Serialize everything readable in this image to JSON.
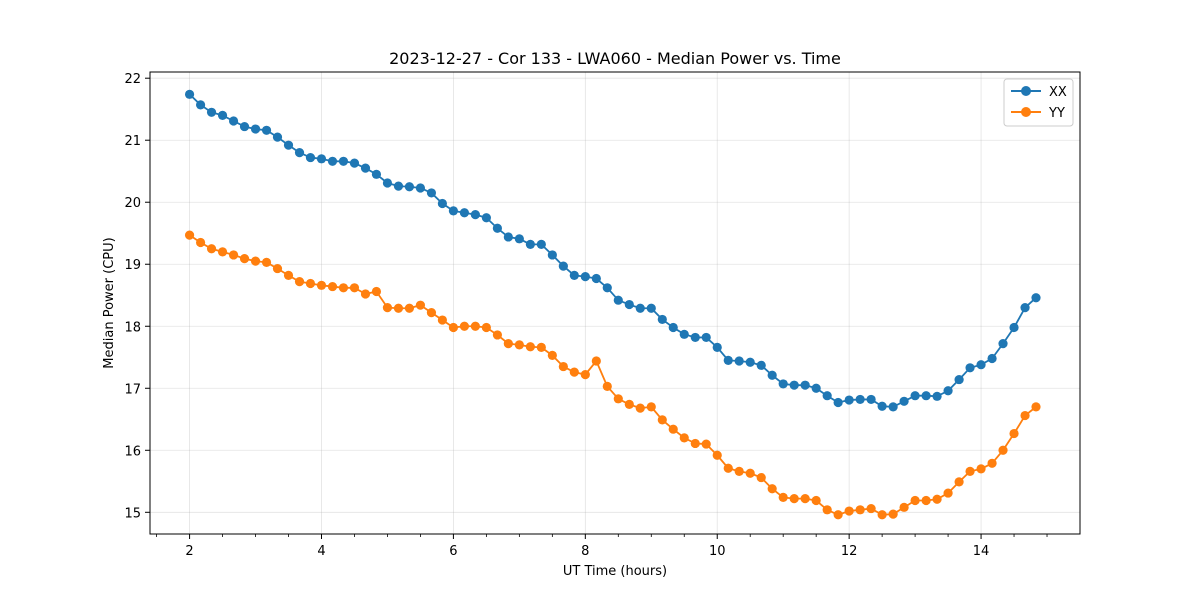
{
  "chart_data": {
    "type": "line",
    "title": "2023-12-27 - Cor 133 - LWA060 - Median Power vs. Time",
    "xlabel": "UT Time (hours)",
    "ylabel": "Median Power (CPU)",
    "xlim": [
      1.4,
      15.5
    ],
    "ylim": [
      14.65,
      22.1
    ],
    "x_ticks": [
      2,
      4,
      6,
      8,
      10,
      12,
      14
    ],
    "y_ticks": [
      15,
      16,
      17,
      18,
      19,
      20,
      21,
      22
    ],
    "x_minor_ticks": [
      1.5,
      2.5,
      3,
      3.5,
      4.5,
      5,
      5.5,
      6.5,
      7,
      7.5,
      8.5,
      9,
      9.5,
      10.5,
      11,
      11.5,
      12.5,
      13,
      13.5,
      14.5,
      15
    ],
    "grid": true,
    "legend_position": "top-right",
    "x": [
      2.0,
      2.167,
      2.333,
      2.5,
      2.667,
      2.833,
      3.0,
      3.167,
      3.333,
      3.5,
      3.667,
      3.833,
      4.0,
      4.167,
      4.333,
      4.5,
      4.667,
      4.833,
      5.0,
      5.167,
      5.333,
      5.5,
      5.667,
      5.833,
      6.0,
      6.167,
      6.333,
      6.5,
      6.667,
      6.833,
      7.0,
      7.167,
      7.333,
      7.5,
      7.667,
      7.833,
      8.0,
      8.167,
      8.333,
      8.5,
      8.667,
      8.833,
      9.0,
      9.167,
      9.333,
      9.5,
      9.667,
      9.833,
      10.0,
      10.167,
      10.333,
      10.5,
      10.667,
      10.833,
      11.0,
      11.167,
      11.333,
      11.5,
      11.667,
      11.833,
      12.0,
      12.167,
      12.333,
      12.5,
      12.667,
      12.833,
      13.0,
      13.167,
      13.333,
      13.5,
      13.667,
      13.833,
      14.0,
      14.167,
      14.333,
      14.5,
      14.667,
      14.833
    ],
    "series": [
      {
        "name": "XX",
        "color": "#1f77b4",
        "values": [
          21.74,
          21.57,
          21.45,
          21.4,
          21.31,
          21.22,
          21.18,
          21.16,
          21.05,
          20.92,
          20.8,
          20.72,
          20.7,
          20.66,
          20.66,
          20.63,
          20.55,
          20.45,
          20.31,
          20.26,
          20.25,
          20.23,
          20.15,
          19.98,
          19.86,
          19.83,
          19.8,
          19.75,
          19.58,
          19.44,
          19.41,
          19.32,
          19.32,
          19.15,
          18.97,
          18.82,
          18.8,
          18.77,
          18.62,
          18.42,
          18.35,
          18.29,
          18.29,
          18.11,
          17.98,
          17.87,
          17.82,
          17.82,
          17.66,
          17.45,
          17.44,
          17.42,
          17.37,
          17.21,
          17.07,
          17.05,
          17.05,
          17.0,
          16.88,
          16.77,
          16.81,
          16.82,
          16.82,
          16.71,
          16.7,
          16.79,
          16.88,
          16.88,
          16.87,
          16.96,
          17.14,
          17.33,
          17.38,
          17.48,
          17.72,
          17.98,
          18.3,
          18.46
        ]
      },
      {
        "name": "YY",
        "color": "#ff7f0e",
        "values": [
          19.47,
          19.35,
          19.25,
          19.2,
          19.15,
          19.09,
          19.05,
          19.03,
          18.93,
          18.82,
          18.72,
          18.69,
          18.66,
          18.64,
          18.62,
          18.62,
          18.52,
          18.56,
          18.3,
          18.29,
          18.29,
          18.34,
          18.22,
          18.1,
          17.98,
          18.0,
          18.0,
          17.98,
          17.86,
          17.72,
          17.7,
          17.67,
          17.66,
          17.53,
          17.35,
          17.26,
          17.22,
          17.44,
          17.03,
          16.83,
          16.74,
          16.68,
          16.7,
          16.49,
          16.34,
          16.2,
          16.11,
          16.1,
          15.92,
          15.71,
          15.66,
          15.63,
          15.56,
          15.38,
          15.24,
          15.22,
          15.22,
          15.19,
          15.04,
          14.96,
          15.02,
          15.04,
          15.06,
          14.96,
          14.97,
          15.08,
          15.19,
          15.19,
          15.21,
          15.31,
          15.49,
          15.66,
          15.7,
          15.79,
          16.0,
          16.27,
          16.56,
          16.7
        ]
      }
    ]
  }
}
